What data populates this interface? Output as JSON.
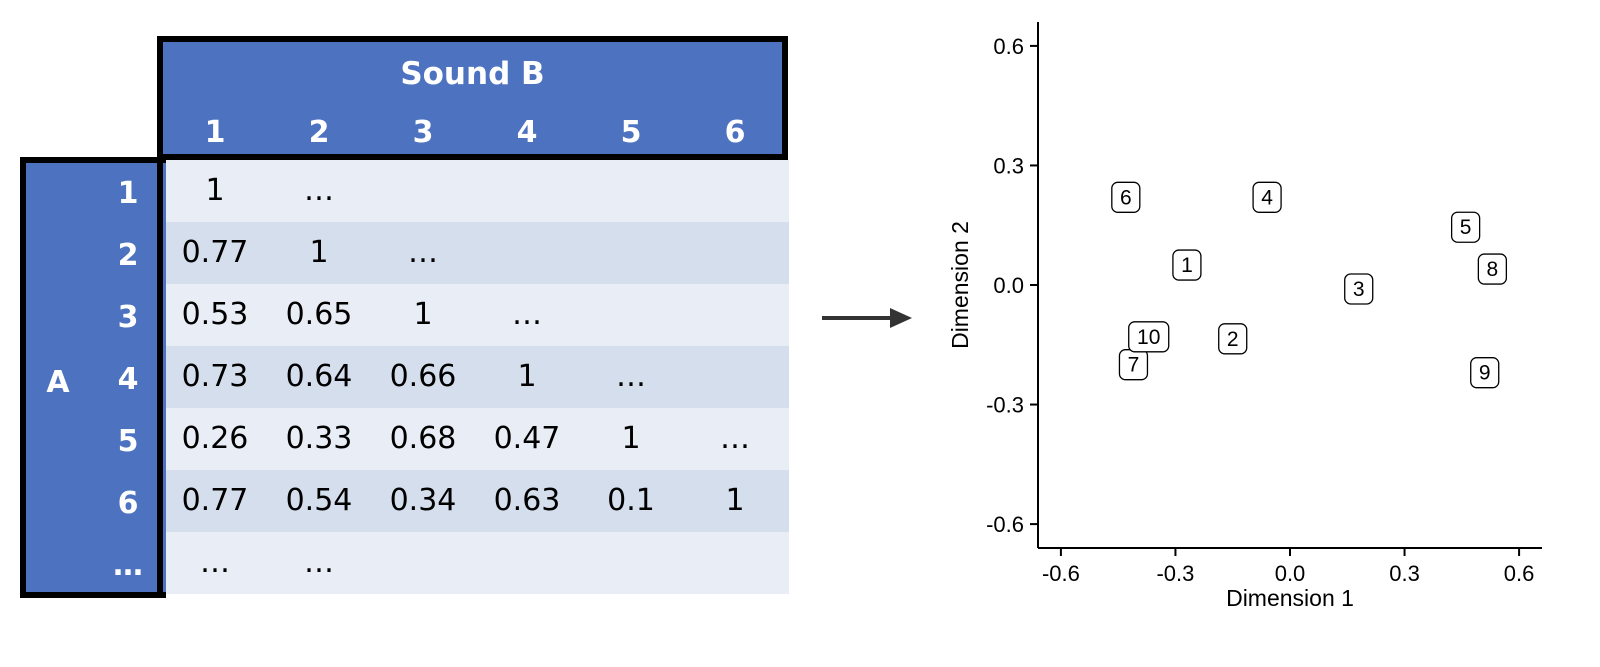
{
  "matrix": {
    "column_group_title": "Sound B",
    "row_group_title": "A",
    "column_labels": [
      "1",
      "2",
      "3",
      "4",
      "5",
      "6"
    ],
    "row_labels": [
      "1",
      "2",
      "3",
      "4",
      "5",
      "6",
      "…"
    ],
    "rows": [
      [
        "1",
        "…",
        "",
        "",
        "",
        ""
      ],
      [
        "0.77",
        "1",
        "…",
        "",
        "",
        ""
      ],
      [
        "0.53",
        "0.65",
        "1",
        "…",
        "",
        ""
      ],
      [
        "0.73",
        "0.64",
        "0.66",
        "1",
        "…",
        ""
      ],
      [
        "0.26",
        "0.33",
        "0.68",
        "0.47",
        "1",
        "…"
      ],
      [
        "0.77",
        "0.54",
        "0.34",
        "0.63",
        "0.1",
        "1"
      ],
      [
        "…",
        "…",
        "",
        "",
        "",
        ""
      ]
    ],
    "header_color": "#4d72bf",
    "band_colors": [
      "#e9eef6",
      "#d4deec"
    ]
  },
  "arrow_icon": "right-arrow-icon",
  "chart_data": {
    "type": "scatter",
    "xlabel": "Dimension 1",
    "ylabel": "Dimension 2",
    "xlim": [
      -0.66,
      0.66
    ],
    "ylim": [
      -0.66,
      0.66
    ],
    "xticks": [
      "-0.6",
      "-0.3",
      "0.0",
      "0.3",
      "0.6"
    ],
    "yticks": [
      "-0.6",
      "-0.3",
      "0.0",
      "0.3",
      "0.6"
    ],
    "tick_values": [
      -0.6,
      -0.3,
      0.0,
      0.3,
      0.6
    ],
    "points": [
      {
        "label": "1",
        "x": -0.27,
        "y": 0.05
      },
      {
        "label": "2",
        "x": -0.15,
        "y": -0.135
      },
      {
        "label": "3",
        "x": 0.18,
        "y": -0.01
      },
      {
        "label": "4",
        "x": -0.06,
        "y": 0.22
      },
      {
        "label": "5",
        "x": 0.46,
        "y": 0.145
      },
      {
        "label": "6",
        "x": -0.43,
        "y": 0.22
      },
      {
        "label": "7",
        "x": -0.41,
        "y": -0.2
      },
      {
        "label": "8",
        "x": 0.53,
        "y": 0.04
      },
      {
        "label": "9",
        "x": 0.51,
        "y": -0.22
      },
      {
        "label": "10",
        "x": -0.37,
        "y": -0.13
      }
    ],
    "grid": false
  }
}
